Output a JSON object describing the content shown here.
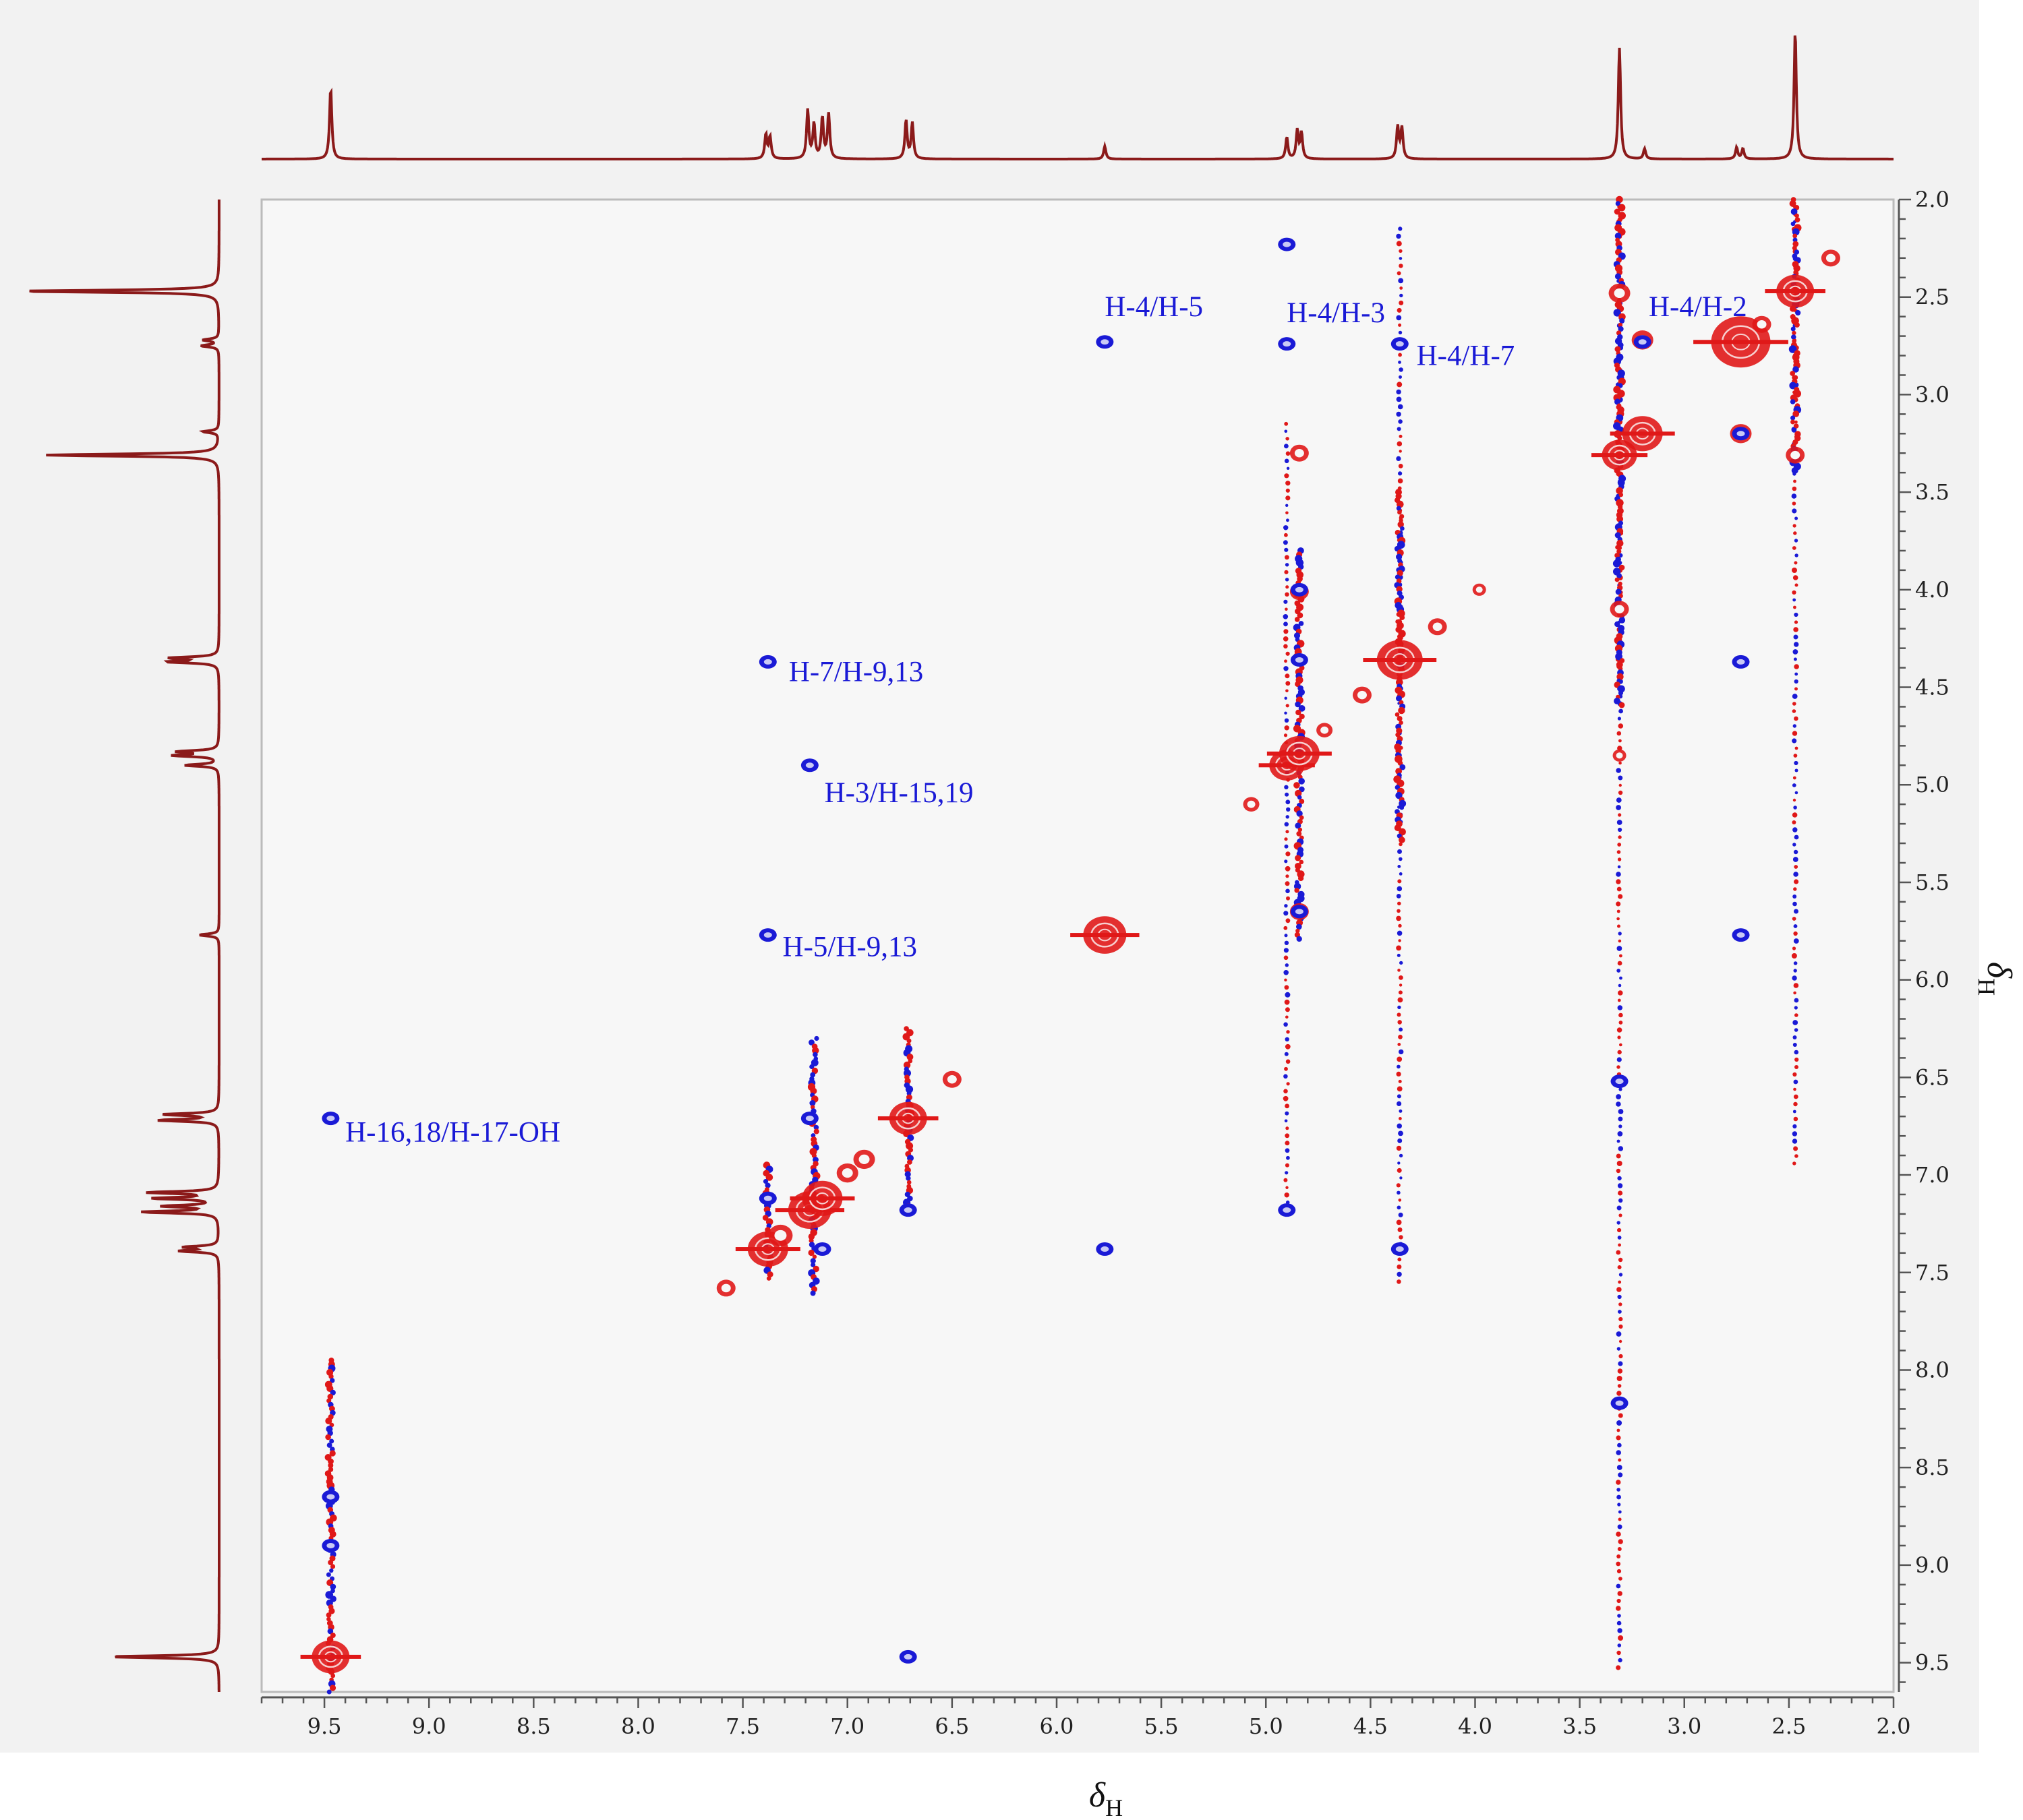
{
  "chart_data": {
    "type": "scatter",
    "subtype": "2D NMR NOESY contour plot with projected 1H spectra",
    "xlabel": {
      "symbol": "δ",
      "subscript": "H"
    },
    "ylabel": {
      "symbol": "δ",
      "subscript": "H"
    },
    "xlim": [
      9.8,
      2.0
    ],
    "ylim": [
      2.0,
      9.65
    ],
    "x_reversed": true,
    "y_increases_downward": true,
    "x_ticks": [
      "9.5",
      "9.0",
      "8.5",
      "8.0",
      "7.5",
      "7.0",
      "6.5",
      "6.0",
      "5.5",
      "5.0",
      "4.5",
      "4.0",
      "3.5",
      "3.0",
      "2.5",
      "2.0"
    ],
    "y_ticks": [
      "2.0",
      "2.5",
      "3.0",
      "3.5",
      "4.0",
      "4.5",
      "5.0",
      "5.5",
      "6.0",
      "6.5",
      "7.0",
      "7.5",
      "8.0",
      "8.5",
      "9.0",
      "9.5"
    ],
    "colors": {
      "positive": "#e01818",
      "negative": "#1a1ad6",
      "projection": "#8b1a1a",
      "plot_bg": "#f7f7f7",
      "annotation": "#1a1ad6"
    },
    "spectrum_peaks": [
      {
        "shift": 9.47,
        "height": 0.55
      },
      {
        "shift": 7.39,
        "height": 0.19
      },
      {
        "shift": 7.37,
        "height": 0.17
      },
      {
        "shift": 7.19,
        "height": 0.38
      },
      {
        "shift": 7.16,
        "height": 0.27
      },
      {
        "shift": 7.12,
        "height": 0.32
      },
      {
        "shift": 7.09,
        "height": 0.35
      },
      {
        "shift": 6.72,
        "height": 0.3
      },
      {
        "shift": 6.69,
        "height": 0.28
      },
      {
        "shift": 5.77,
        "height": 0.1
      },
      {
        "shift": 4.9,
        "height": 0.17
      },
      {
        "shift": 4.85,
        "height": 0.22
      },
      {
        "shift": 4.83,
        "height": 0.2
      },
      {
        "shift": 4.37,
        "height": 0.25
      },
      {
        "shift": 4.35,
        "height": 0.24
      },
      {
        "shift": 3.31,
        "height": 0.87
      },
      {
        "shift": 3.19,
        "height": 0.08
      },
      {
        "shift": 2.75,
        "height": 0.09
      },
      {
        "shift": 2.72,
        "height": 0.08
      },
      {
        "shift": 2.47,
        "height": 1.0
      }
    ],
    "positive_peaks": [
      {
        "x": 9.47,
        "y": 9.47,
        "size": 1.2
      },
      {
        "x": 7.38,
        "y": 7.38,
        "size": 1.3
      },
      {
        "x": 7.18,
        "y": 7.18,
        "size": 1.4
      },
      {
        "x": 7.12,
        "y": 7.12,
        "size": 1.3
      },
      {
        "x": 6.71,
        "y": 6.71,
        "size": 1.2
      },
      {
        "x": 5.77,
        "y": 5.77,
        "size": 1.4
      },
      {
        "x": 4.9,
        "y": 4.9,
        "size": 1.1
      },
      {
        "x": 4.84,
        "y": 4.84,
        "size": 1.3
      },
      {
        "x": 4.36,
        "y": 4.36,
        "size": 1.5
      },
      {
        "x": 3.31,
        "y": 3.31,
        "size": 1.1
      },
      {
        "x": 3.2,
        "y": 3.2,
        "size": 1.3
      },
      {
        "x": 2.73,
        "y": 2.73,
        "size": 2.0
      },
      {
        "x": 2.47,
        "y": 2.47,
        "size": 1.2
      },
      {
        "x": 7.58,
        "y": 7.58,
        "size": 0.5
      },
      {
        "x": 7.32,
        "y": 7.31,
        "size": 0.7
      },
      {
        "x": 7.0,
        "y": 6.99,
        "size": 0.6
      },
      {
        "x": 6.92,
        "y": 6.92,
        "size": 0.6
      },
      {
        "x": 6.5,
        "y": 6.51,
        "size": 0.5
      },
      {
        "x": 5.07,
        "y": 5.1,
        "size": 0.4
      },
      {
        "x": 4.72,
        "y": 4.72,
        "size": 0.4
      },
      {
        "x": 4.54,
        "y": 4.54,
        "size": 0.5
      },
      {
        "x": 4.18,
        "y": 4.19,
        "size": 0.5
      },
      {
        "x": 3.98,
        "y": 4.0,
        "size": 0.3
      },
      {
        "x": 2.3,
        "y": 2.3,
        "size": 0.5
      },
      {
        "x": 2.63,
        "y": 2.64,
        "size": 0.5
      },
      {
        "x": 4.84,
        "y": 3.3,
        "size": 0.5
      },
      {
        "x": 4.84,
        "y": 4.01,
        "size": 0.5
      },
      {
        "x": 4.84,
        "y": 5.65,
        "size": 0.5
      },
      {
        "x": 3.2,
        "y": 2.72,
        "size": 0.6
      },
      {
        "x": 2.73,
        "y": 3.2,
        "size": 0.6
      },
      {
        "x": 3.31,
        "y": 4.1,
        "size": 0.5
      },
      {
        "x": 3.31,
        "y": 2.48,
        "size": 0.6
      },
      {
        "x": 2.47,
        "y": 3.31,
        "size": 0.5
      },
      {
        "x": 3.31,
        "y": 4.85,
        "size": 0.3
      },
      {
        "x": 3.31,
        "y": 8.17,
        "size": 0.3
      }
    ],
    "negative_peaks": [
      {
        "x": 5.77,
        "y": 2.73
      },
      {
        "x": 4.9,
        "y": 2.74
      },
      {
        "x": 4.9,
        "y": 2.23
      },
      {
        "x": 4.36,
        "y": 2.74
      },
      {
        "x": 7.38,
        "y": 4.37
      },
      {
        "x": 7.18,
        "y": 4.9
      },
      {
        "x": 7.38,
        "y": 5.77
      },
      {
        "x": 9.47,
        "y": 6.71
      },
      {
        "x": 2.73,
        "y": 4.37
      },
      {
        "x": 2.73,
        "y": 5.77
      },
      {
        "x": 2.73,
        "y": 3.2
      },
      {
        "x": 3.2,
        "y": 2.73
      },
      {
        "x": 6.71,
        "y": 9.47
      },
      {
        "x": 6.71,
        "y": 7.18
      },
      {
        "x": 7.18,
        "y": 6.71
      },
      {
        "x": 7.38,
        "y": 7.12
      },
      {
        "x": 7.12,
        "y": 7.38
      },
      {
        "x": 5.77,
        "y": 7.38
      },
      {
        "x": 4.9,
        "y": 7.18
      },
      {
        "x": 4.36,
        "y": 7.38
      },
      {
        "x": 4.84,
        "y": 4.0
      },
      {
        "x": 4.84,
        "y": 4.36
      },
      {
        "x": 4.84,
        "y": 5.65
      },
      {
        "x": 3.31,
        "y": 6.52
      },
      {
        "x": 3.31,
        "y": 8.17
      },
      {
        "x": 9.47,
        "y": 8.65
      },
      {
        "x": 9.47,
        "y": 8.9
      }
    ],
    "streaks": [
      {
        "x": 9.47,
        "y_from": 7.95,
        "y_to": 9.65,
        "density": "heavy"
      },
      {
        "x": 7.38,
        "y_from": 6.95,
        "y_to": 7.55,
        "density": "heavy"
      },
      {
        "x": 7.16,
        "y_from": 6.3,
        "y_to": 7.62,
        "density": "heavy"
      },
      {
        "x": 6.71,
        "y_from": 6.25,
        "y_to": 7.2,
        "density": "heavy"
      },
      {
        "x": 4.9,
        "y_from": 3.15,
        "y_to": 7.2,
        "density": "medium"
      },
      {
        "x": 4.84,
        "y_from": 3.8,
        "y_to": 5.8,
        "density": "heavy"
      },
      {
        "x": 4.36,
        "y_from": 2.15,
        "y_to": 7.55,
        "density": "medium"
      },
      {
        "x": 4.36,
        "y_from": 3.5,
        "y_to": 5.3,
        "density": "heavy"
      },
      {
        "x": 3.31,
        "y_from": 2.0,
        "y_to": 9.55,
        "density": "medium"
      },
      {
        "x": 3.31,
        "y_from": 2.0,
        "y_to": 4.6,
        "density": "heavy"
      },
      {
        "x": 2.47,
        "y_from": 2.0,
        "y_to": 6.95,
        "density": "medium"
      },
      {
        "x": 2.47,
        "y_from": 2.0,
        "y_to": 3.4,
        "density": "heavy"
      }
    ],
    "annotations": [
      {
        "text": "H-4/H-5",
        "x": 5.77,
        "y": 2.55
      },
      {
        "text": "H-4/H-3",
        "x": 4.9,
        "y": 2.58
      },
      {
        "text": "H-4/H-7",
        "x": 4.28,
        "y": 2.8
      },
      {
        "text": "H-4/H-2",
        "x": 3.17,
        "y": 2.55
      },
      {
        "text": "H-7/H-9,13",
        "x": 7.28,
        "y": 4.42
      },
      {
        "text": "H-3/H-15,19",
        "x": 7.11,
        "y": 5.04
      },
      {
        "text": "H-5/H-9,13",
        "x": 7.31,
        "y": 5.83
      },
      {
        "text": "H-16,18/H-17-OH",
        "x": 9.4,
        "y": 6.78
      }
    ]
  }
}
